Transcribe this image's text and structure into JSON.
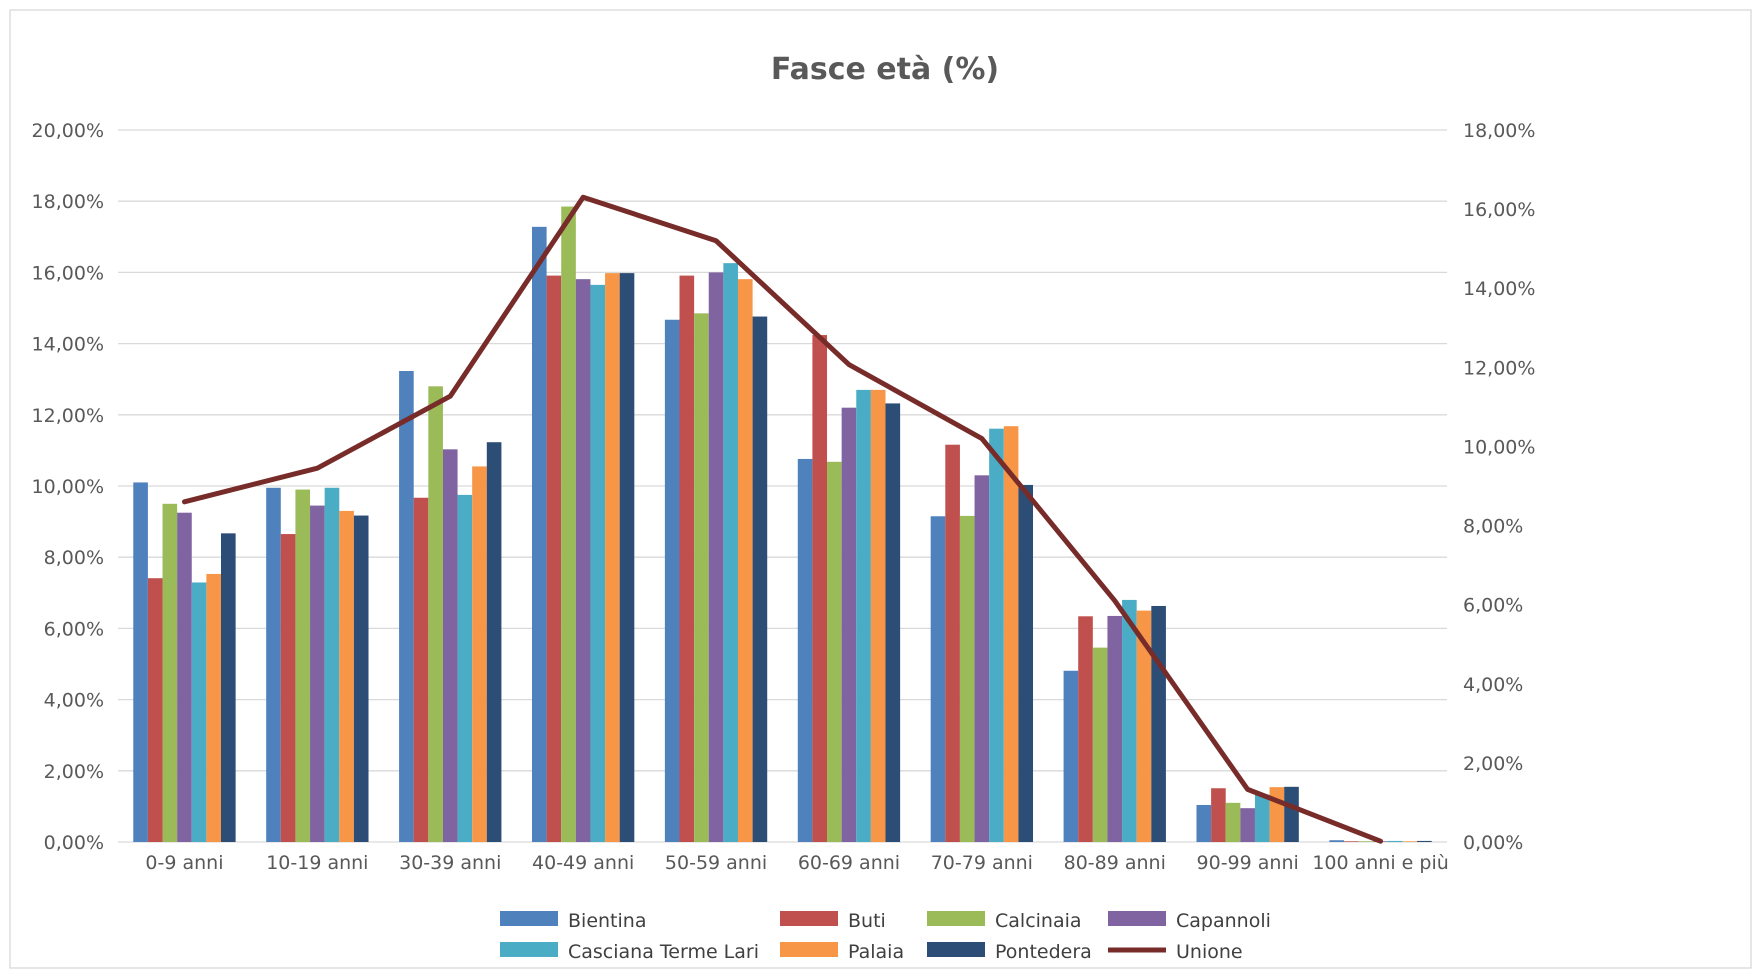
{
  "chart_data": {
    "type": "bar",
    "title": "Fasce età  (%)",
    "categories": [
      "0-9 anni",
      "10-19 anni",
      "30-39 anni",
      "40-49 anni",
      "50-59 anni",
      "60-69 anni",
      "70-79 anni",
      "80-89 anni",
      "90-99 anni",
      "100 anni e più"
    ],
    "series": [
      {
        "name": "Bientina",
        "type": "bar",
        "axis": "left",
        "color": "#4f81bd",
        "values": [
          10.1,
          9.95,
          13.23,
          17.28,
          14.67,
          10.76,
          9.15,
          4.81,
          1.04,
          0.05
        ]
      },
      {
        "name": "Buti",
        "type": "bar",
        "axis": "left",
        "color": "#c0504d",
        "values": [
          7.41,
          8.65,
          9.67,
          15.91,
          15.91,
          14.24,
          11.16,
          6.34,
          1.51,
          0.02
        ]
      },
      {
        "name": "Calcinaia",
        "type": "bar",
        "axis": "left",
        "color": "#9bbb59",
        "values": [
          9.5,
          9.9,
          12.8,
          17.85,
          14.85,
          10.68,
          9.16,
          5.46,
          1.1,
          0.02
        ]
      },
      {
        "name": "Capannoli",
        "type": "bar",
        "axis": "left",
        "color": "#8064a2",
        "values": [
          9.25,
          9.45,
          11.03,
          15.81,
          16.0,
          12.2,
          10.3,
          6.35,
          0.95,
          0.02
        ]
      },
      {
        "name": "Casciana Terme Lari",
        "type": "bar",
        "axis": "left",
        "color": "#4bacc6",
        "values": [
          7.29,
          9.95,
          9.75,
          15.65,
          16.26,
          12.7,
          11.61,
          6.8,
          1.33,
          0.03
        ]
      },
      {
        "name": "Palaia",
        "type": "bar",
        "axis": "left",
        "color": "#f79646",
        "values": [
          7.53,
          9.3,
          10.55,
          15.98,
          15.81,
          12.7,
          11.68,
          6.5,
          1.54,
          0.02
        ]
      },
      {
        "name": "Pontedera",
        "type": "bar",
        "axis": "left",
        "color": "#2c4d75",
        "values": [
          8.67,
          9.17,
          11.23,
          15.98,
          14.76,
          12.32,
          10.03,
          6.63,
          1.55,
          0.03
        ]
      },
      {
        "name": "Unione",
        "type": "line",
        "axis": "right",
        "color": "#772c2a",
        "values": [
          8.6,
          9.45,
          11.27,
          16.3,
          15.2,
          12.07,
          10.2,
          6.1,
          1.33,
          0.02
        ]
      }
    ],
    "y_left": {
      "min": 0,
      "max": 20,
      "ticks": [
        "0,00%",
        "2,00%",
        "4,00%",
        "6,00%",
        "8,00%",
        "10,00%",
        "12,00%",
        "14,00%",
        "16,00%",
        "18,00%",
        "20,00%"
      ]
    },
    "y_right": {
      "min": 0,
      "max": 18,
      "ticks": [
        "0,00%",
        "2,00%",
        "4,00%",
        "6,00%",
        "8,00%",
        "10,00%",
        "12,00%",
        "14,00%",
        "16,00%",
        "18,00%"
      ]
    },
    "grid": true,
    "legend": "bottom"
  }
}
